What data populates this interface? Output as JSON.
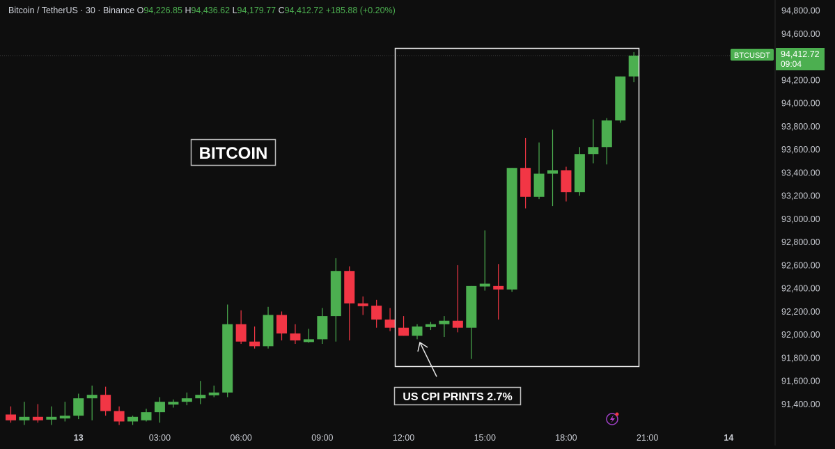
{
  "header": {
    "symbol": "Bitcoin / TetherUS · 30 · Binance",
    "o_label": "O",
    "o_value": "94,226.85",
    "h_label": "H",
    "h_value": "94,436.62",
    "l_label": "L",
    "l_value": "94,179.77",
    "c_label": "C",
    "c_value": "94,412.72",
    "change": "+185.88 (+0.20%)"
  },
  "price_tag": {
    "symbol": "BTCUSDT",
    "price": "94,412.72",
    "countdown": "09:04"
  },
  "annotations": {
    "title": "BITCOIN",
    "cpi": "US CPI PRINTS 2.7%"
  },
  "colors": {
    "up": "#4caf50",
    "down": "#f23645",
    "background": "#0e0e0e",
    "text": "#d1d4dc"
  },
  "icons": {
    "bottom_right": "lightning-alert-icon"
  },
  "chart_data": {
    "type": "candlestick",
    "interval": "30",
    "y_ticks": [
      91400,
      91600,
      91800,
      92000,
      92200,
      92400,
      92600,
      92800,
      93000,
      93200,
      93400,
      93600,
      93800,
      94000,
      94200,
      94400,
      94600,
      94800
    ],
    "x_ticks": [
      {
        "label": "13",
        "bar": 5
      },
      {
        "label": "03:00",
        "bar": 11
      },
      {
        "label": "06:00",
        "bar": 17
      },
      {
        "label": "09:00",
        "bar": 23
      },
      {
        "label": "12:00",
        "bar": 29
      },
      {
        "label": "15:00",
        "bar": 35
      },
      {
        "label": "18:00",
        "bar": 41
      },
      {
        "label": "21:00",
        "bar": 47
      },
      {
        "label": "14",
        "bar": 53
      }
    ],
    "candles": [
      {
        "o": 91310,
        "h": 91380,
        "l": 91240,
        "c": 91260
      },
      {
        "o": 91260,
        "h": 91420,
        "l": 91220,
        "c": 91290
      },
      {
        "o": 91290,
        "h": 91400,
        "l": 91240,
        "c": 91260
      },
      {
        "o": 91270,
        "h": 91380,
        "l": 91220,
        "c": 91290
      },
      {
        "o": 91290,
        "h": 91420,
        "l": 91250,
        "c": 91300
      },
      {
        "o": 91300,
        "h": 91490,
        "l": 91270,
        "c": 91450
      },
      {
        "o": 91450,
        "h": 91560,
        "l": 91260,
        "c": 91480
      },
      {
        "o": 91480,
        "h": 91550,
        "l": 91300,
        "c": 91340
      },
      {
        "o": 91340,
        "h": 91380,
        "l": 91220,
        "c": 91250
      },
      {
        "o": 91250,
        "h": 91300,
        "l": 91220,
        "c": 91290
      },
      {
        "o": 91260,
        "h": 91360,
        "l": 91250,
        "c": 91330
      },
      {
        "o": 91330,
        "h": 91460,
        "l": 91240,
        "c": 91420
      },
      {
        "o": 91410,
        "h": 91440,
        "l": 91370,
        "c": 91420
      },
      {
        "o": 91420,
        "h": 91500,
        "l": 91390,
        "c": 91450
      },
      {
        "o": 91450,
        "h": 91600,
        "l": 91400,
        "c": 91480
      },
      {
        "o": 91480,
        "h": 91560,
        "l": 91460,
        "c": 91500
      },
      {
        "o": 91500,
        "h": 92260,
        "l": 91460,
        "c": 92090
      },
      {
        "o": 92090,
        "h": 92210,
        "l": 91920,
        "c": 91940
      },
      {
        "o": 91940,
        "h": 92070,
        "l": 91880,
        "c": 91900
      },
      {
        "o": 91900,
        "h": 92240,
        "l": 91880,
        "c": 92170
      },
      {
        "o": 92170,
        "h": 92200,
        "l": 91950,
        "c": 92010
      },
      {
        "o": 92010,
        "h": 92090,
        "l": 91920,
        "c": 91950
      },
      {
        "o": 91950,
        "h": 92050,
        "l": 91930,
        "c": 91960
      },
      {
        "o": 91960,
        "h": 92230,
        "l": 91920,
        "c": 92160
      },
      {
        "o": 92160,
        "h": 92660,
        "l": 91940,
        "c": 92550
      },
      {
        "o": 92550,
        "h": 92590,
        "l": 91950,
        "c": 92270
      },
      {
        "o": 92270,
        "h": 92330,
        "l": 92170,
        "c": 92250
      },
      {
        "o": 92250,
        "h": 92300,
        "l": 92060,
        "c": 92130
      },
      {
        "o": 92130,
        "h": 92230,
        "l": 92030,
        "c": 92060
      },
      {
        "o": 92060,
        "h": 92160,
        "l": 91990,
        "c": 91990
      },
      {
        "o": 91990,
        "h": 92090,
        "l": 91960,
        "c": 92070
      },
      {
        "o": 92070,
        "h": 92110,
        "l": 92040,
        "c": 92090
      },
      {
        "o": 92090,
        "h": 92160,
        "l": 91980,
        "c": 92120
      },
      {
        "o": 92120,
        "h": 92600,
        "l": 92020,
        "c": 92060
      },
      {
        "o": 92060,
        "h": 92420,
        "l": 91790,
        "c": 92420
      },
      {
        "o": 92420,
        "h": 92900,
        "l": 92380,
        "c": 92440
      },
      {
        "o": 92420,
        "h": 92610,
        "l": 92130,
        "c": 92390
      },
      {
        "o": 92390,
        "h": 93440,
        "l": 92370,
        "c": 93440
      },
      {
        "o": 93440,
        "h": 93700,
        "l": 93090,
        "c": 93190
      },
      {
        "o": 93190,
        "h": 93660,
        "l": 93170,
        "c": 93390
      },
      {
        "o": 93390,
        "h": 93770,
        "l": 93110,
        "c": 93420
      },
      {
        "o": 93420,
        "h": 93450,
        "l": 93150,
        "c": 93230
      },
      {
        "o": 93230,
        "h": 93620,
        "l": 93200,
        "c": 93560
      },
      {
        "o": 93560,
        "h": 93860,
        "l": 93480,
        "c": 93620
      },
      {
        "o": 93620,
        "h": 93870,
        "l": 93470,
        "c": 93850
      },
      {
        "o": 93850,
        "h": 94230,
        "l": 93830,
        "c": 94230
      },
      {
        "o": 94230,
        "h": 94440,
        "l": 94180,
        "c": 94410
      }
    ]
  }
}
